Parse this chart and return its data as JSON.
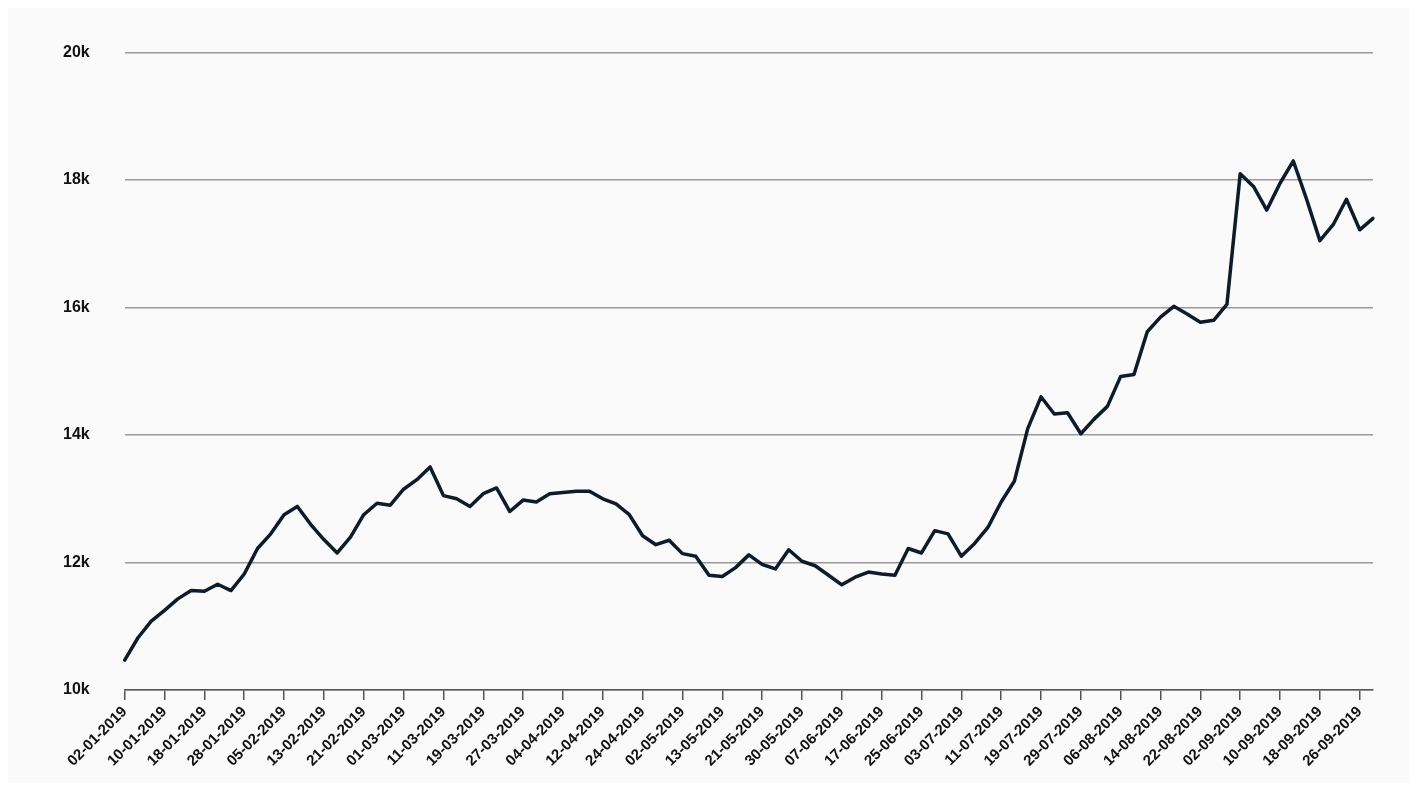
{
  "chart_data": {
    "type": "line",
    "categories": [
      "02-01-2019",
      null,
      null,
      "10-01-2019",
      null,
      null,
      "18-01-2019",
      null,
      null,
      "28-01-2019",
      null,
      null,
      "05-02-2019",
      null,
      null,
      "13-02-2019",
      null,
      null,
      "21-02-2019",
      null,
      null,
      "01-03-2019",
      null,
      null,
      "11-03-2019",
      null,
      null,
      "19-03-2019",
      null,
      null,
      "27-03-2019",
      null,
      null,
      "04-04-2019",
      null,
      null,
      "12-04-2019",
      null,
      null,
      "24-04-2019",
      null,
      null,
      "02-05-2019",
      null,
      null,
      "13-05-2019",
      null,
      null,
      "21-05-2019",
      null,
      null,
      "30-05-2019",
      null,
      null,
      "07-06-2019",
      null,
      null,
      "17-06-2019",
      null,
      null,
      "25-06-2019",
      null,
      null,
      "03-07-2019",
      null,
      null,
      "11-07-2019",
      null,
      null,
      "19-07-2019",
      null,
      null,
      "29-07-2019",
      null,
      null,
      "06-08-2019",
      null,
      null,
      "14-08-2019",
      null,
      null,
      "22-08-2019",
      null,
      null,
      "02-09-2019",
      null,
      null,
      "10-09-2019",
      null,
      null,
      "18-09-2019",
      null,
      null,
      "26-09-2019",
      null
    ],
    "series": [
      {
        "color": "#0d1b2a",
        "values": [
          10470,
          10820,
          11080,
          11250,
          11430,
          11560,
          11550,
          11660,
          11560,
          11820,
          12220,
          12450,
          12750,
          12880,
          12600,
          12360,
          12150,
          12400,
          12750,
          12930,
          12900,
          13150,
          13300,
          13500,
          13050,
          13000,
          12880,
          13080,
          13170,
          12800,
          12980,
          12950,
          13080,
          13100,
          13120,
          13120,
          13000,
          12920,
          12750,
          12420,
          12280,
          12350,
          12140,
          12100,
          11800,
          11780,
          11920,
          12120,
          11970,
          11900,
          12200,
          12020,
          11950,
          11800,
          11650,
          11770,
          11850,
          11820,
          11800,
          12220,
          12150,
          12500,
          12450,
          12100,
          12300,
          12550,
          12950,
          13280,
          14100,
          14600,
          14330,
          14350,
          14020,
          14250,
          14450,
          14920,
          14950,
          15620,
          15850,
          16020,
          15900,
          15770,
          15800,
          16050,
          18100,
          17900,
          17530,
          17950,
          18300,
          17700,
          17050,
          17300,
          17700,
          17220,
          17400
        ]
      }
    ],
    "ylim": [
      10000,
      20000
    ],
    "yticks": [
      {
        "value": 10000,
        "label": "10k"
      },
      {
        "value": 12000,
        "label": "12k"
      },
      {
        "value": 14000,
        "label": "14k"
      },
      {
        "value": 16000,
        "label": "16k"
      },
      {
        "value": 18000,
        "label": "18k"
      },
      {
        "value": 20000,
        "label": "20k"
      }
    ],
    "grid": "y",
    "legend": false,
    "marker": "none",
    "line_style": "solid"
  }
}
